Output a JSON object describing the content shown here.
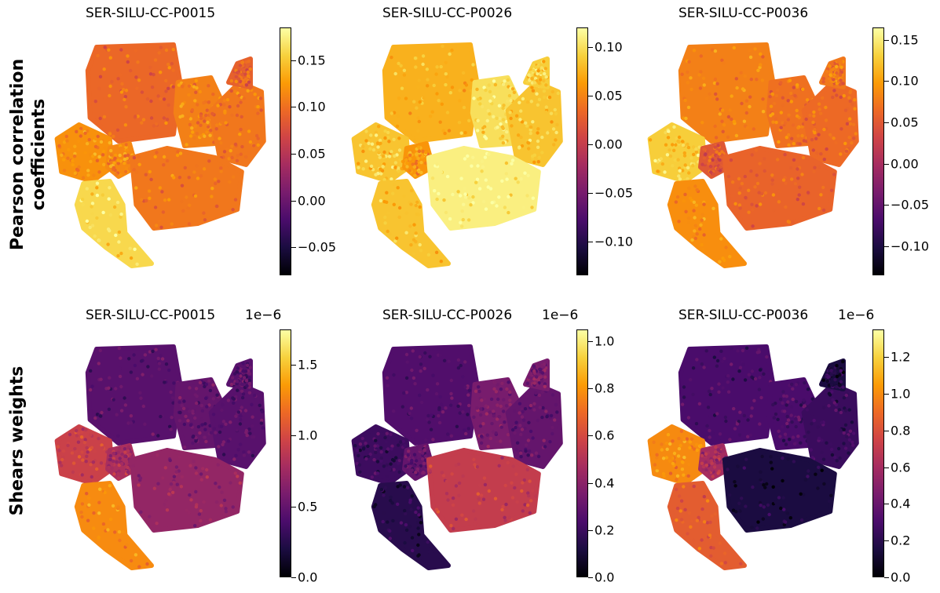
{
  "row_labels": {
    "top": [
      "Pearson correlation",
      "coefficients"
    ],
    "bottom": [
      "Shears weights"
    ]
  },
  "colormap": {
    "name": "inferno",
    "stops": [
      "#000004",
      "#1b0c41",
      "#4a0c6b",
      "#781c6d",
      "#a52c60",
      "#cf4446",
      "#ed6925",
      "#fb9b06",
      "#f7d13d",
      "#fcffa4"
    ]
  },
  "chart_data": [
    {
      "type": "scatter",
      "title": "SER-SILU-CC-P0015",
      "colorbar": {
        "min": -0.08,
        "max": 0.185,
        "ticks": [
          0.15,
          0.1,
          0.05,
          0.0,
          -0.05
        ],
        "tick_labels": [
          "0.15",
          "0.10",
          "0.05",
          "0.00",
          "−0.05"
        ],
        "scale_label": ""
      },
      "cluster_values": [
        0.095,
        0.11,
        0.105,
        0.09,
        0.12,
        0.115,
        0.105,
        0.16
      ]
    },
    {
      "type": "scatter",
      "title": "SER-SILU-CC-P0026",
      "colorbar": {
        "min": -0.135,
        "max": 0.12,
        "ticks": [
          0.1,
          0.05,
          0.0,
          -0.05,
          -0.1
        ],
        "tick_labels": [
          "0.10",
          "0.05",
          "0.00",
          "−0.05",
          "−0.10"
        ],
        "scale_label": ""
      },
      "cluster_values": [
        0.075,
        0.1,
        0.085,
        0.09,
        0.085,
        0.06,
        0.11,
        0.085
      ]
    },
    {
      "type": "scatter",
      "title": "SER-SILU-CC-P0036",
      "colorbar": {
        "min": -0.135,
        "max": 0.165,
        "ticks": [
          0.15,
          0.1,
          0.05,
          0.0,
          -0.05,
          -0.1
        ],
        "tick_labels": [
          "0.15",
          "0.10",
          "0.05",
          "0.00",
          "−0.05",
          "−0.10"
        ],
        "scale_label": ""
      },
      "cluster_values": [
        0.08,
        0.07,
        0.065,
        0.075,
        0.13,
        0.05,
        0.06,
        0.09
      ]
    },
    {
      "type": "scatter",
      "title": "SER-SILU-CC-P0015",
      "colorbar": {
        "min": 0.0,
        "max": 1.75,
        "ticks": [
          1.5,
          1.0,
          0.5,
          0.0
        ],
        "tick_labels": [
          "1.5",
          "1.0",
          "0.5",
          "0.0"
        ],
        "scale_label": "1e−6"
      },
      "cluster_values": [
        0.45,
        0.5,
        0.45,
        0.45,
        0.95,
        0.8,
        0.7,
        1.3
      ]
    },
    {
      "type": "scatter",
      "title": "SER-SILU-CC-P0026",
      "colorbar": {
        "min": 0.0,
        "max": 1.05,
        "ticks": [
          1.0,
          0.8,
          0.6,
          0.4,
          0.2,
          0.0
        ],
        "tick_labels": [
          "1.0",
          "0.8",
          "0.6",
          "0.4",
          "0.2",
          "0.0"
        ],
        "scale_label": "1e−6"
      },
      "cluster_values": [
        0.25,
        0.35,
        0.3,
        0.35,
        0.2,
        0.3,
        0.55,
        0.15
      ]
    },
    {
      "type": "scatter",
      "title": "SER-SILU-CC-P0036",
      "colorbar": {
        "min": 0.0,
        "max": 1.35,
        "ticks": [
          1.2,
          1.0,
          0.8,
          0.6,
          0.4,
          0.2,
          0.0
        ],
        "tick_labels": [
          "1.2",
          "1.0",
          "0.8",
          "0.6",
          "0.4",
          "0.2",
          "0.0"
        ],
        "scale_label": "1e−6"
      },
      "cluster_values": [
        0.3,
        0.3,
        0.25,
        0.15,
        1.0,
        0.6,
        0.15,
        0.85
      ]
    }
  ]
}
